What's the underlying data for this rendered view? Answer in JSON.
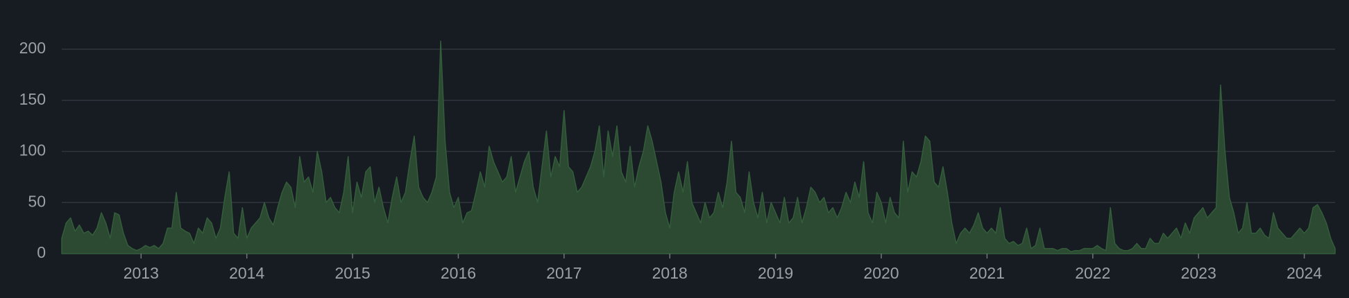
{
  "chart_data": {
    "type": "area",
    "categories": [
      null,
      null,
      null,
      null,
      null,
      null,
      null,
      null,
      null,
      null,
      null,
      null,
      null,
      null,
      null,
      null,
      null,
      null,
      "2013",
      null,
      null,
      null,
      null,
      null,
      null,
      null,
      null,
      null,
      null,
      null,
      null,
      null,
      null,
      null,
      null,
      null,
      null,
      null,
      null,
      null,
      null,
      null,
      "2014",
      null,
      null,
      null,
      null,
      null,
      null,
      null,
      null,
      null,
      null,
      null,
      null,
      null,
      null,
      null,
      null,
      null,
      null,
      null,
      null,
      null,
      null,
      null,
      "2015",
      null,
      null,
      null,
      null,
      null,
      null,
      null,
      null,
      null,
      null,
      null,
      null,
      null,
      null,
      null,
      null,
      null,
      null,
      null,
      null,
      null,
      null,
      null,
      "2016",
      null,
      null,
      null,
      null,
      null,
      null,
      null,
      null,
      null,
      null,
      null,
      null,
      null,
      null,
      null,
      null,
      null,
      null,
      null,
      null,
      null,
      null,
      null,
      "2017",
      null,
      null,
      null,
      null,
      null,
      null,
      null,
      null,
      null,
      null,
      null,
      null,
      null,
      null,
      null,
      null,
      null,
      null,
      null,
      null,
      null,
      null,
      null,
      "2018",
      null,
      null,
      null,
      null,
      null,
      null,
      null,
      null,
      null,
      null,
      null,
      null,
      null,
      null,
      null,
      null,
      null,
      null,
      null,
      null,
      null,
      null,
      null,
      "2019",
      null,
      null,
      null,
      null,
      null,
      null,
      null,
      null,
      null,
      null,
      null,
      null,
      null,
      null,
      null,
      null,
      null,
      null,
      null,
      null,
      null,
      null,
      null,
      "2020",
      null,
      null,
      null,
      null,
      null,
      null,
      null,
      null,
      null,
      null,
      null,
      null,
      null,
      null,
      null,
      null,
      null,
      null,
      null,
      null,
      null,
      null,
      null,
      "2021",
      null,
      null,
      null,
      null,
      null,
      null,
      null,
      null,
      null,
      null,
      null,
      null,
      null,
      null,
      null,
      null,
      null,
      null,
      null,
      null,
      null,
      null,
      null,
      "2022",
      null,
      null,
      null,
      null,
      null,
      null,
      null,
      null,
      null,
      null,
      null,
      null,
      null,
      null,
      null,
      null,
      null,
      null,
      null,
      null,
      null,
      null,
      null,
      "2023",
      null,
      null,
      null,
      null,
      null,
      null,
      null,
      null,
      null,
      null,
      null,
      null,
      null,
      null,
      null,
      null,
      null,
      null,
      null,
      null,
      null,
      null,
      null,
      "2024",
      null,
      null,
      null,
      null,
      null,
      null,
      null
    ],
    "values": [
      15,
      30,
      35,
      22,
      28,
      20,
      22,
      18,
      25,
      40,
      30,
      15,
      40,
      38,
      20,
      8,
      5,
      3,
      5,
      8,
      6,
      8,
      5,
      10,
      25,
      25,
      60,
      25,
      22,
      20,
      10,
      25,
      20,
      35,
      30,
      15,
      25,
      55,
      80,
      20,
      15,
      45,
      15,
      25,
      30,
      35,
      50,
      35,
      28,
      45,
      60,
      70,
      65,
      45,
      95,
      70,
      75,
      60,
      100,
      80,
      50,
      55,
      45,
      40,
      60,
      95,
      40,
      70,
      55,
      80,
      85,
      50,
      65,
      45,
      30,
      55,
      75,
      50,
      60,
      90,
      115,
      65,
      55,
      50,
      60,
      75,
      208,
      110,
      60,
      45,
      55,
      30,
      40,
      42,
      60,
      80,
      65,
      105,
      90,
      80,
      70,
      75,
      95,
      60,
      75,
      90,
      100,
      65,
      50,
      85,
      120,
      75,
      95,
      85,
      140,
      85,
      80,
      60,
      65,
      75,
      85,
      100,
      125,
      75,
      120,
      95,
      125,
      80,
      70,
      105,
      65,
      85,
      100,
      125,
      110,
      90,
      70,
      40,
      25,
      60,
      80,
      60,
      90,
      50,
      40,
      30,
      50,
      35,
      40,
      60,
      45,
      70,
      110,
      60,
      55,
      40,
      80,
      50,
      35,
      60,
      30,
      50,
      40,
      30,
      55,
      30,
      35,
      55,
      30,
      45,
      65,
      60,
      50,
      55,
      40,
      45,
      35,
      45,
      60,
      50,
      70,
      55,
      90,
      40,
      30,
      60,
      50,
      30,
      55,
      40,
      35,
      110,
      60,
      80,
      75,
      90,
      115,
      110,
      70,
      65,
      85,
      60,
      30,
      10,
      20,
      25,
      20,
      28,
      40,
      25,
      20,
      25,
      20,
      45,
      15,
      10,
      12,
      8,
      10,
      25,
      5,
      8,
      25,
      5,
      5,
      5,
      3,
      5,
      5,
      2,
      3,
      3,
      5,
      5,
      5,
      8,
      5,
      3,
      45,
      10,
      5,
      3,
      3,
      5,
      10,
      5,
      5,
      15,
      10,
      10,
      20,
      15,
      20,
      25,
      15,
      30,
      20,
      35,
      40,
      45,
      35,
      40,
      45,
      165,
      100,
      55,
      40,
      20,
      25,
      50,
      20,
      20,
      25,
      18,
      15,
      40,
      25,
      20,
      15,
      15,
      20,
      25,
      20,
      25,
      45,
      48,
      40,
      30,
      15,
      5
    ],
    "color": "#2b4a31",
    "line_color": "#335d3b",
    "ylim": [
      0,
      200
    ],
    "yticks": [
      0,
      50,
      100,
      150,
      200
    ],
    "grid": true
  }
}
